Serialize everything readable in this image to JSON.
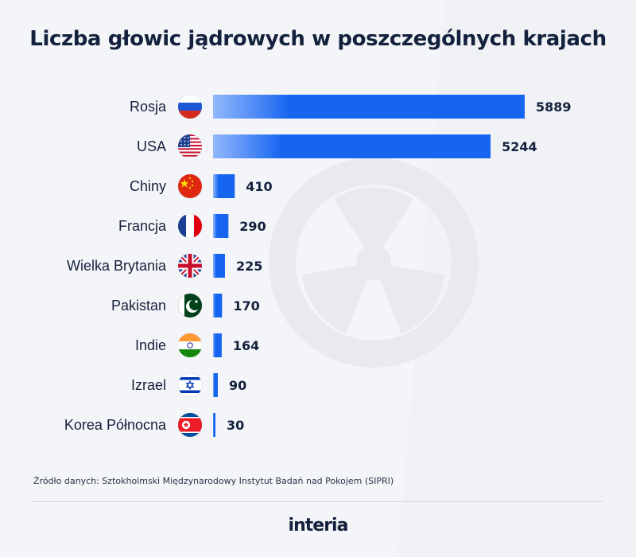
{
  "title": "Liczba głowic jądrowych w poszczególnych krajach",
  "source": "Źródło danych: Sztokholmski Międzynarodowy Instytut Badań nad Pokojem (SIPRI)",
  "logo": "interia",
  "colors": {
    "bar_start": "#93b8fb",
    "bar_end": "#1565f0",
    "text": "#14213d",
    "background": "#f4f5f8"
  },
  "chart_data": {
    "type": "bar",
    "orientation": "horizontal",
    "title": "Liczba głowic jądrowych w poszczególnych krajach",
    "categories": [
      "Rosja",
      "USA",
      "Chiny",
      "Francja",
      "Wielka Brytania",
      "Pakistan",
      "Indie",
      "Izrael",
      "Korea Północna"
    ],
    "values": [
      5889,
      5244,
      410,
      290,
      225,
      170,
      164,
      90,
      30
    ],
    "flags": [
      "flag-russia",
      "flag-usa",
      "flag-china",
      "flag-france",
      "flag-united-kingdom",
      "flag-pakistan",
      "flag-india",
      "flag-israel",
      "flag-north-korea"
    ],
    "xlabel": "",
    "ylabel": "",
    "grid": false,
    "legend": "none",
    "data_labels": true
  }
}
